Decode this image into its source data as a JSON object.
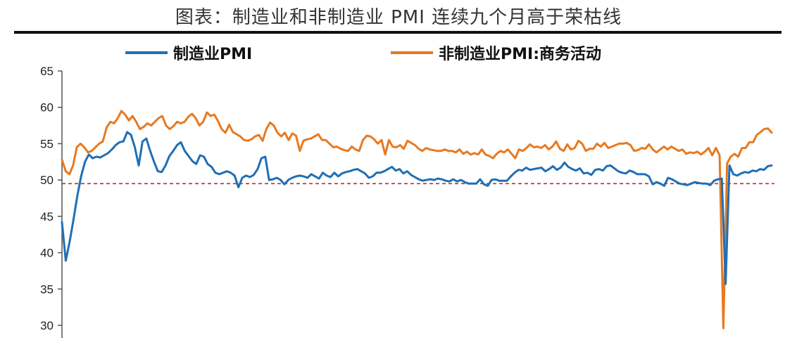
{
  "title": "图表：制造业和非制造业 PMI 连续九个月高于荣枯线",
  "chart_data": {
    "type": "line",
    "ylim": [
      30,
      65
    ],
    "yticks": [
      "65",
      "60",
      "55",
      "50",
      "45",
      "40",
      "35",
      "30"
    ],
    "reference_line": 49.5,
    "legend_position": "top",
    "grid": false,
    "series": [
      {
        "name": "制造业PMI",
        "color": "#1f6fb5",
        "values": [
          44.2,
          38.9,
          41.5,
          44.5,
          47.8,
          50.5,
          52.5,
          53.5,
          53.0,
          53.2,
          53.1,
          53.4,
          53.7,
          54.2,
          54.8,
          55.2,
          55.3,
          56.6,
          56.2,
          54.5,
          52.0,
          55.3,
          55.7,
          54.0,
          52.5,
          51.2,
          51.1,
          52.0,
          53.3,
          54.0,
          54.8,
          55.2,
          54.0,
          53.3,
          52.6,
          52.2,
          53.4,
          53.2,
          52.2,
          51.8,
          51.0,
          50.8,
          51.0,
          51.2,
          51.0,
          50.6,
          49.0,
          50.3,
          50.6,
          50.4,
          50.7,
          51.5,
          53.0,
          53.2,
          50.0,
          50.1,
          50.3,
          50.0,
          49.4,
          50.0,
          50.3,
          50.5,
          50.6,
          50.5,
          50.3,
          50.8,
          50.5,
          50.2,
          51.0,
          50.6,
          50.4,
          51.0,
          50.5,
          50.9,
          51.1,
          51.2,
          51.4,
          51.5,
          51.2,
          50.9,
          50.3,
          50.5,
          51.0,
          51.0,
          51.2,
          51.5,
          51.8,
          51.3,
          51.5,
          50.9,
          51.2,
          50.7,
          50.4,
          50.1,
          49.9,
          50.0,
          50.1,
          50.0,
          50.2,
          50.1,
          49.9,
          49.8,
          50.1,
          49.8,
          50.0,
          49.7,
          49.5,
          49.5,
          49.5,
          50.1,
          49.4,
          49.2,
          50.0,
          50.1,
          49.9,
          49.9,
          49.9,
          50.5,
          51.0,
          51.4,
          51.3,
          51.7,
          51.4,
          51.5,
          51.6,
          51.7,
          51.2,
          51.5,
          51.9,
          51.4,
          51.7,
          52.4,
          51.8,
          51.5,
          51.3,
          51.6,
          50.9,
          51.0,
          50.7,
          51.4,
          51.5,
          51.3,
          51.9,
          52.0,
          51.6,
          51.2,
          51.0,
          50.9,
          51.3,
          51.1,
          50.8,
          50.8,
          50.8,
          50.5,
          49.4,
          49.7,
          49.5,
          49.2,
          50.3,
          50.1,
          49.8,
          49.5,
          49.4,
          49.3,
          49.5,
          49.7,
          49.6,
          49.5,
          49.5,
          49.3,
          49.9,
          50.1,
          50.2,
          35.7,
          52.0,
          50.8,
          50.6,
          50.9,
          51.1,
          51.0,
          51.3,
          51.2,
          51.5,
          51.4,
          51.9,
          52.0
        ]
      },
      {
        "name": "非制造业PMI:商务活动",
        "color": "#e8791f",
        "values": [
          52.8,
          51.2,
          50.8,
          52.0,
          54.5,
          55.0,
          54.5,
          53.8,
          54.0,
          54.5,
          55.0,
          55.3,
          57.2,
          58.0,
          57.8,
          58.5,
          59.5,
          59.0,
          58.2,
          58.8,
          58.0,
          57.0,
          57.3,
          57.8,
          57.5,
          58.0,
          58.5,
          58.8,
          57.5,
          57.0,
          57.4,
          58.0,
          57.8,
          58.0,
          58.7,
          59.1,
          58.5,
          57.5,
          58.0,
          59.3,
          58.8,
          59.0,
          58.1,
          57.0,
          56.5,
          57.6,
          56.6,
          56.3,
          56.0,
          55.5,
          55.4,
          55.6,
          56.0,
          56.2,
          55.4,
          57.0,
          57.9,
          57.5,
          56.5,
          56.0,
          56.5,
          55.5,
          56.4,
          56.1,
          54.0,
          55.4,
          55.6,
          55.7,
          56.0,
          56.3,
          55.5,
          55.5,
          55.0,
          54.5,
          54.6,
          54.3,
          54.1,
          54.0,
          54.6,
          54.2,
          54.0,
          55.5,
          56.1,
          56.0,
          55.6,
          55.0,
          55.5,
          53.5,
          55.5,
          54.6,
          54.5,
          54.8,
          54.3,
          55.4,
          55.1,
          54.8,
          54.3,
          54.0,
          54.4,
          54.2,
          54.1,
          54.0,
          54.0,
          54.2,
          54.0,
          54.0,
          53.8,
          54.2,
          53.6,
          53.9,
          53.5,
          53.7,
          53.5,
          54.2,
          53.5,
          53.3,
          53.0,
          53.6,
          54.0,
          53.8,
          54.2,
          53.6,
          53.0,
          54.2,
          54.0,
          54.4,
          54.9,
          54.5,
          54.6,
          54.4,
          54.8,
          54.2,
          54.6,
          55.3,
          54.3,
          54.0,
          54.9,
          54.2,
          54.4,
          55.4,
          55.0,
          54.0,
          54.3,
          54.3,
          55.0,
          54.6,
          55.1,
          54.4,
          54.6,
          54.8,
          55.0,
          55.0,
          55.1,
          54.8,
          54.0,
          54.1,
          54.4,
          54.3,
          54.9,
          54.2,
          53.8,
          54.2,
          54.6,
          54.2,
          54.6,
          54.3,
          54.0,
          54.2,
          53.6,
          53.8,
          53.7,
          53.9,
          53.5,
          53.9,
          54.4,
          53.4,
          54.4,
          53.4,
          29.6,
          52.3,
          53.2,
          53.6,
          53.2,
          54.4,
          54.4,
          55.2,
          55.2,
          56.2,
          56.6,
          57.0,
          57.1,
          56.5
        ]
      }
    ]
  }
}
